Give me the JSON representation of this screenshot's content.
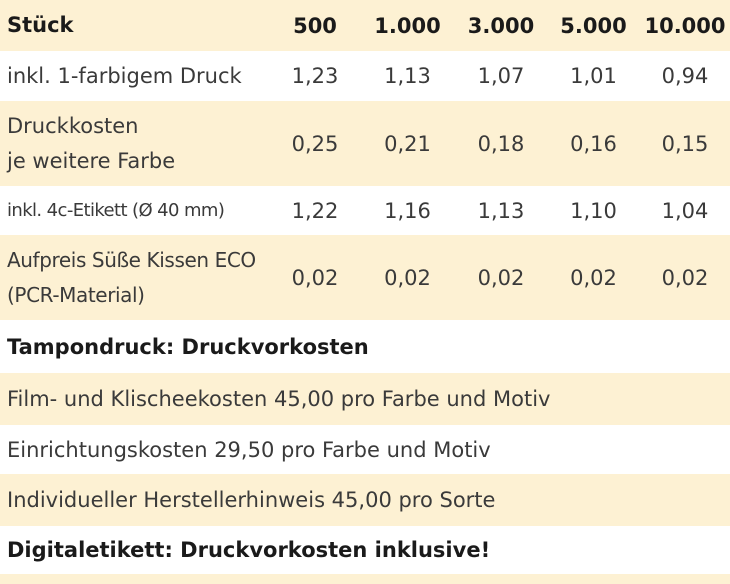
{
  "header": {
    "label": "Stück",
    "quantities": [
      "500",
      "1.000",
      "3.000",
      "5.000",
      "10.000"
    ]
  },
  "rows": [
    {
      "label": "inkl. 1-farbigem Druck",
      "values": [
        "1,23",
        "1,13",
        "1,07",
        "1,01",
        "0,94"
      ]
    },
    {
      "label": "Druckkosten je weitere Farbe",
      "values": [
        "0,25",
        "0,21",
        "0,18",
        "0,16",
        "0,15"
      ]
    },
    {
      "label": "inkl. 4c-Etikett (Ø 40 mm)",
      "values": [
        "1,22",
        "1,16",
        "1,13",
        "1,10",
        "1,04"
      ]
    },
    {
      "label": "Aufpreis Süße Kissen ECO (PCR-Material)",
      "values": [
        "0,02",
        "0,02",
        "0,02",
        "0,02",
        "0,02"
      ]
    }
  ],
  "row_label_lines": {
    "r1_line1": "Druckkosten",
    "r1_line2": "je weitere Farbe",
    "r3_line1": "Aufpreis Süße Kissen ECO",
    "r3_line2": "(PCR-Material)"
  },
  "tampondruck": {
    "heading": "Tampondruck: Druckvorkosten",
    "lines": [
      "Film- und Klischeekosten 45,00 pro Farbe und Motiv",
      "Einrichtungskosten 29,50 pro Farbe und Motiv",
      "Individueller Herstellerhinweis 45,00 pro Sorte"
    ]
  },
  "digitaletikett": {
    "heading": "Digitaletikett: Druckvorkosten inklusive!"
  },
  "colors": {
    "row_highlight": "#fdf1d3",
    "text": "#3a3a3a",
    "heading_text": "#1a1a1a"
  }
}
